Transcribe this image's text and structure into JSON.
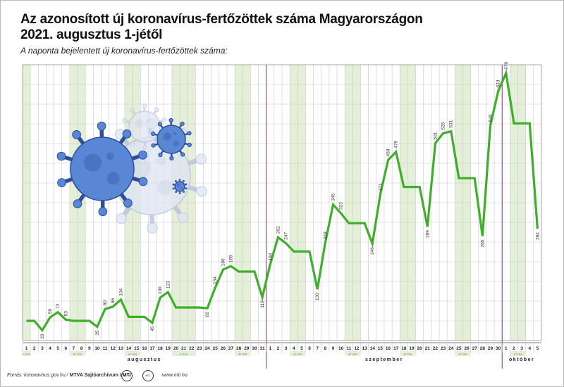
{
  "title_line1": "Az azonosított új koronavírus-fertőzöttek száma Magyarországon",
  "title_line2": "2021. augusztus 1-jétől",
  "subtitle": "A naponta bejelentett új koronavírus-fertőzöttek száma:",
  "footer": {
    "source_prefix": "Forrás: koronavirus.gov.hu / ",
    "source_bold": "MTVA Sajtóarchívum / MTI",
    "site": "www.mti.hu",
    "logo1": "MTVA",
    "logo2": "MTI"
  },
  "colors": {
    "line": "#3fae2a",
    "weekend_band": "#e3efd6",
    "grid": "#c9c9c9",
    "month_divider": "#8b2f6b"
  },
  "chart_data": {
    "type": "line",
    "title": "Az azonosított új koronavírus-fertőzöttek száma Magyarországon 2021. augusztus 1-jétől",
    "subtitle": "A naponta bejelentett új koronavírus-fertőzöttek száma:",
    "xlabel": "",
    "ylabel": "",
    "grid": true,
    "months": [
      {
        "name": "augusztus",
        "start": "2021-08-01",
        "days": 31
      },
      {
        "name": "szeptember",
        "start": "2021-09-01",
        "days": 30
      },
      {
        "name": "október",
        "start": "2021-10-01",
        "days": 5
      }
    ],
    "weekend_label": "é r t é k",
    "x": [
      "2021-08-01",
      "2021-08-02",
      "2021-08-03",
      "2021-08-04",
      "2021-08-05",
      "2021-08-06",
      "2021-08-07",
      "2021-08-08",
      "2021-08-09",
      "2021-08-10",
      "2021-08-11",
      "2021-08-12",
      "2021-08-13",
      "2021-08-14",
      "2021-08-15",
      "2021-08-16",
      "2021-08-17",
      "2021-08-18",
      "2021-08-19",
      "2021-08-20",
      "2021-08-21",
      "2021-08-22",
      "2021-08-23",
      "2021-08-24",
      "2021-08-25",
      "2021-08-26",
      "2021-08-27",
      "2021-08-28",
      "2021-08-29",
      "2021-08-30",
      "2021-08-31",
      "2021-09-01",
      "2021-09-02",
      "2021-09-03",
      "2021-09-04",
      "2021-09-05",
      "2021-09-06",
      "2021-09-07",
      "2021-09-08",
      "2021-09-09",
      "2021-09-10",
      "2021-09-11",
      "2021-09-12",
      "2021-09-13",
      "2021-09-14",
      "2021-09-15",
      "2021-09-16",
      "2021-09-17",
      "2021-09-18",
      "2021-09-19",
      "2021-09-20",
      "2021-09-21",
      "2021-09-22",
      "2021-09-23",
      "2021-09-24",
      "2021-09-25",
      "2021-09-26",
      "2021-09-27",
      "2021-09-28",
      "2021-09-29",
      "2021-09-30",
      "2021-10-01",
      "2021-10-02",
      "2021-10-03",
      "2021-10-04",
      "2021-10-05"
    ],
    "values": [
      50,
      50,
      26,
      59,
      72,
      53,
      50,
      50,
      50,
      35,
      80,
      86,
      104,
      60,
      60,
      60,
      45,
      109,
      123,
      84,
      84,
      84,
      84,
      82,
      134,
      180,
      189,
      175,
      175,
      175,
      110,
      194,
      262,
      247,
      226,
      226,
      226,
      130,
      248,
      345,
      323,
      298,
      298,
      298,
      246,
      371,
      458,
      479,
      390,
      390,
      390,
      289,
      501,
      526,
      531,
      412,
      412,
      412,
      265,
      546,
      633,
      679,
      551,
      551,
      551,
      284
    ],
    "value_labels": [
      "",
      "",
      "26",
      "59",
      "72",
      "53",
      "",
      "",
      "",
      "35",
      "80",
      "86",
      "104",
      "",
      "",
      "",
      "45",
      "109",
      "123",
      "",
      "",
      "",
      "",
      "82",
      "134",
      "180",
      "189",
      "",
      "",
      "",
      "110",
      "194",
      "262",
      "247",
      "",
      "",
      "",
      "130",
      "248",
      "345",
      "323",
      "",
      "",
      "",
      "246",
      "371",
      "458",
      "479",
      "",
      "",
      "",
      "289",
      "501",
      "526",
      "531",
      "",
      "",
      "",
      "265",
      "546",
      "633",
      "679",
      "",
      "",
      "",
      "284"
    ],
    "weekends": [
      "2021-08-01",
      "2021-08-07",
      "2021-08-08",
      "2021-08-14",
      "2021-08-15",
      "2021-08-20",
      "2021-08-21",
      "2021-08-22",
      "2021-08-28",
      "2021-08-29",
      "2021-09-04",
      "2021-09-05",
      "2021-09-11",
      "2021-09-12",
      "2021-09-18",
      "2021-09-19",
      "2021-09-25",
      "2021-09-26",
      "2021-10-02",
      "2021-10-03"
    ],
    "ylim": [
      0,
      700
    ]
  }
}
